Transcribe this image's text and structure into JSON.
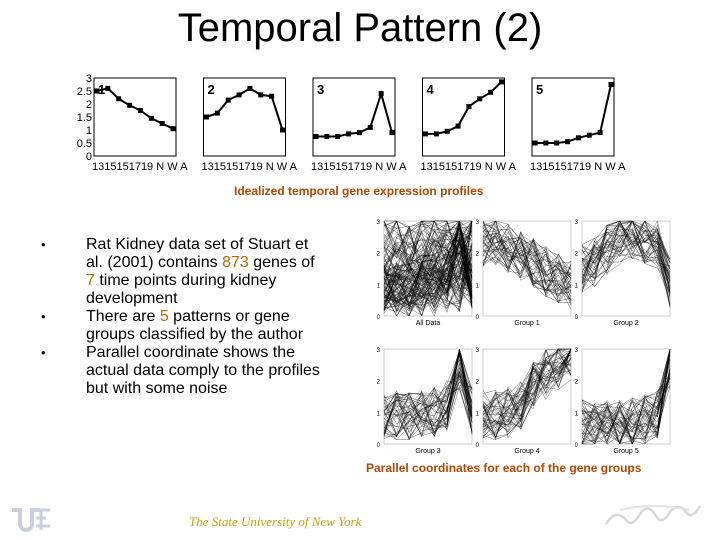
{
  "title": "Temporal Pattern (2)",
  "profiles_caption": "Idealized temporal gene expression profiles",
  "parallel_caption": "Parallel coordinates for each of the gene groups",
  "bullets": [
    {
      "parts": [
        "Rat Kidney data set of Stuart et al. (2001) contains ",
        "873",
        " genes of ",
        "7",
        " time points during kidney development"
      ]
    },
    {
      "parts": [
        "There are ",
        "5",
        " patterns or gene groups classified by the author"
      ]
    },
    {
      "parts": [
        "Parallel coordinate shows the actual data comply to the profiles but with some noise"
      ]
    }
  ],
  "footer": "The State University of New York",
  "colors": {
    "caption": "#b34700",
    "highlight": "#b36b00",
    "footer": "#c8a000"
  },
  "chart_data": [
    {
      "type": "line",
      "title": "",
      "categories": [
        "13",
        "15",
        "15",
        "17",
        "19",
        "N",
        "W",
        "A"
      ],
      "y_ticks": [
        0,
        0.5,
        1,
        1.5,
        2,
        2.5,
        3
      ],
      "ylim": [
        0,
        3
      ],
      "grid": false,
      "panels": [
        {
          "label": "1",
          "values": [
            2.5,
            2.6,
            2.2,
            1.95,
            1.75,
            1.45,
            1.25,
            1.05
          ]
        },
        {
          "label": "2",
          "values": [
            1.5,
            1.65,
            2.15,
            2.35,
            2.6,
            2.35,
            2.3,
            1.0
          ]
        },
        {
          "label": "3",
          "values": [
            0.75,
            0.75,
            0.75,
            0.85,
            0.9,
            1.1,
            2.4,
            0.9
          ]
        },
        {
          "label": "4",
          "values": [
            0.85,
            0.85,
            0.95,
            1.15,
            1.9,
            2.2,
            2.45,
            2.85
          ]
        },
        {
          "label": "5",
          "values": [
            0.5,
            0.5,
            0.5,
            0.55,
            0.7,
            0.8,
            0.9,
            2.75
          ]
        }
      ]
    },
    {
      "type": "line",
      "title": "",
      "ylim": [
        0,
        3
      ],
      "y_ticks": [
        0,
        1,
        2,
        3
      ],
      "panels": [
        {
          "label": "All Data"
        },
        {
          "label": "Group 1"
        },
        {
          "label": "Group 2"
        },
        {
          "label": "Group 3"
        },
        {
          "label": "Group 4"
        },
        {
          "label": "Group 5"
        }
      ]
    }
  ]
}
